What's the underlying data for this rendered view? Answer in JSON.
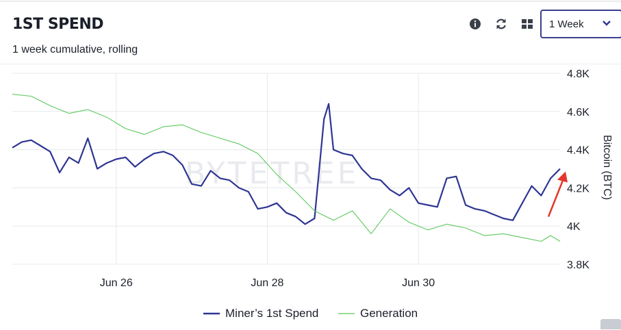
{
  "header": {
    "title": "1ST SPEND",
    "subtitle": "1 week cumulative, rolling"
  },
  "toolbar": {
    "icons": [
      "info-icon",
      "refresh-icon",
      "grid-icon"
    ],
    "range_select": {
      "value": "1 Week"
    }
  },
  "colors": {
    "miners_spend": "#2d3592",
    "generation": "#5cc85c",
    "annotation_arrow": "#e5372c",
    "grid": "#e6e8ec"
  },
  "watermark": "BYTETREE",
  "chart_data": {
    "type": "line",
    "x_unit": "days",
    "x_range": [
      "Jun 24 15:00",
      "Jul 1 21:00"
    ],
    "x_ticks": [
      {
        "label": "Jun 26",
        "x": "Jun 26"
      },
      {
        "label": "Jun 28",
        "x": "Jun 28"
      },
      {
        "label": "Jun 30",
        "x": "Jun 30"
      }
    ],
    "ylabel": "Bitcoin (BTC)",
    "ylim": [
      3800,
      4800
    ],
    "y_ticks": [
      {
        "label": "3.8K",
        "value": 3800
      },
      {
        "label": "4K",
        "value": 4000
      },
      {
        "label": "4.2K",
        "value": 4200
      },
      {
        "label": "4.4K",
        "value": 4400
      },
      {
        "label": "4.6K",
        "value": 4600
      },
      {
        "label": "4.8K",
        "value": 4800
      }
    ],
    "grid": true,
    "legend": "bottom-center",
    "series": [
      {
        "name": "Miner’s 1st Spend",
        "points": [
          [
            "Jun 24 15:00",
            4410
          ],
          [
            "Jun 24 18:00",
            4440
          ],
          [
            "Jun 24 21:00",
            4450
          ],
          [
            "Jun 25 00:00",
            4420
          ],
          [
            "Jun 25 03:00",
            4390
          ],
          [
            "Jun 25 06:00",
            4280
          ],
          [
            "Jun 25 09:00",
            4360
          ],
          [
            "Jun 25 12:00",
            4330
          ],
          [
            "Jun 25 15:00",
            4460
          ],
          [
            "Jun 25 18:00",
            4300
          ],
          [
            "Jun 25 21:00",
            4330
          ],
          [
            "Jun 26 00:00",
            4350
          ],
          [
            "Jun 26 03:00",
            4360
          ],
          [
            "Jun 26 06:00",
            4310
          ],
          [
            "Jun 26 09:00",
            4350
          ],
          [
            "Jun 26 12:00",
            4380
          ],
          [
            "Jun 26 15:00",
            4390
          ],
          [
            "Jun 26 18:00",
            4370
          ],
          [
            "Jun 26 21:00",
            4320
          ],
          [
            "Jun 27 00:00",
            4220
          ],
          [
            "Jun 27 03:00",
            4210
          ],
          [
            "Jun 27 06:00",
            4290
          ],
          [
            "Jun 27 09:00",
            4250
          ],
          [
            "Jun 27 12:00",
            4240
          ],
          [
            "Jun 27 15:00",
            4200
          ],
          [
            "Jun 27 18:00",
            4180
          ],
          [
            "Jun 27 21:00",
            4090
          ],
          [
            "Jun 28 00:00",
            4100
          ],
          [
            "Jun 28 03:00",
            4120
          ],
          [
            "Jun 28 06:00",
            4070
          ],
          [
            "Jun 28 09:00",
            4050
          ],
          [
            "Jun 28 12:00",
            4010
          ],
          [
            "Jun 28 15:00",
            4040
          ],
          [
            "Jun 28 18:00",
            4560
          ],
          [
            "Jun 28 19:30",
            4640
          ],
          [
            "Jun 28 21:00",
            4400
          ],
          [
            "Jun 29 00:00",
            4380
          ],
          [
            "Jun 29 03:00",
            4370
          ],
          [
            "Jun 29 06:00",
            4300
          ],
          [
            "Jun 29 09:00",
            4250
          ],
          [
            "Jun 29 12:00",
            4240
          ],
          [
            "Jun 29 15:00",
            4190
          ],
          [
            "Jun 29 18:00",
            4160
          ],
          [
            "Jun 29 21:00",
            4200
          ],
          [
            "Jun 30 00:00",
            4120
          ],
          [
            "Jun 30 03:00",
            4110
          ],
          [
            "Jun 30 06:00",
            4100
          ],
          [
            "Jun 30 09:00",
            4250
          ],
          [
            "Jun 30 12:00",
            4260
          ],
          [
            "Jun 30 15:00",
            4110
          ],
          [
            "Jun 30 18:00",
            4090
          ],
          [
            "Jun 30 21:00",
            4080
          ],
          [
            "Jul 1 00:00",
            4060
          ],
          [
            "Jul 1 03:00",
            4040
          ],
          [
            "Jul 1 06:00",
            4030
          ],
          [
            "Jul 1 09:00",
            4120
          ],
          [
            "Jul 1 12:00",
            4210
          ],
          [
            "Jul 1 15:00",
            4160
          ],
          [
            "Jul 1 18:00",
            4250
          ],
          [
            "Jul 1 21:00",
            4300
          ]
        ]
      },
      {
        "name": "Generation",
        "points": [
          [
            "Jun 24 15:00",
            4690
          ],
          [
            "Jun 24 21:00",
            4680
          ],
          [
            "Jun 25 03:00",
            4630
          ],
          [
            "Jun 25 09:00",
            4590
          ],
          [
            "Jun 25 15:00",
            4610
          ],
          [
            "Jun 25 21:00",
            4570
          ],
          [
            "Jun 26 03:00",
            4510
          ],
          [
            "Jun 26 09:00",
            4480
          ],
          [
            "Jun 26 15:00",
            4520
          ],
          [
            "Jun 26 21:00",
            4530
          ],
          [
            "Jun 27 03:00",
            4490
          ],
          [
            "Jun 27 09:00",
            4460
          ],
          [
            "Jun 27 15:00",
            4430
          ],
          [
            "Jun 27 21:00",
            4380
          ],
          [
            "Jun 28 03:00",
            4270
          ],
          [
            "Jun 28 09:00",
            4180
          ],
          [
            "Jun 28 15:00",
            4080
          ],
          [
            "Jun 28 21:00",
            4030
          ],
          [
            "Jun 29 03:00",
            4080
          ],
          [
            "Jun 29 09:00",
            3960
          ],
          [
            "Jun 29 15:00",
            4090
          ],
          [
            "Jun 29 21:00",
            4020
          ],
          [
            "Jun 30 03:00",
            3980
          ],
          [
            "Jun 30 09:00",
            4010
          ],
          [
            "Jun 30 15:00",
            3990
          ],
          [
            "Jun 30 21:00",
            3950
          ],
          [
            "Jul 1 03:00",
            3960
          ],
          [
            "Jul 1 09:00",
            3940
          ],
          [
            "Jul 1 15:00",
            3920
          ],
          [
            "Jul 1 18:00",
            3950
          ],
          [
            "Jul 1 21:00",
            3920
          ]
        ]
      }
    ]
  }
}
